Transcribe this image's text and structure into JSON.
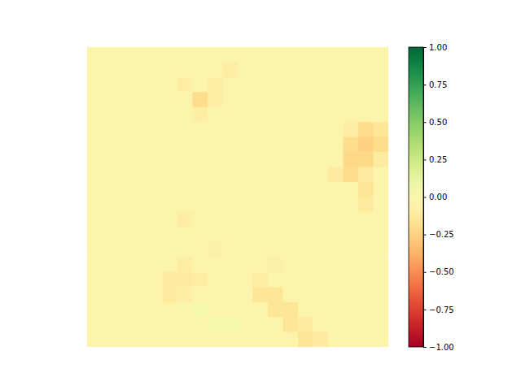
{
  "chart_data": {
    "type": "heatmap",
    "color": "RdYlGn",
    "tick_labels": false,
    "cells": [
      [
        -0.05,
        -0.05,
        -0.05,
        -0.05,
        -0.05,
        -0.05,
        -0.05,
        -0.05,
        -0.05,
        -0.05,
        -0.05,
        -0.05,
        -0.05,
        -0.05,
        -0.05,
        -0.05,
        -0.05,
        -0.05,
        -0.05,
        -0.05
      ],
      [
        -0.05,
        -0.05,
        -0.05,
        -0.05,
        -0.05,
        -0.05,
        -0.05,
        -0.05,
        -0.05,
        -0.1,
        -0.05,
        -0.05,
        -0.05,
        -0.05,
        -0.05,
        -0.05,
        -0.05,
        -0.05,
        -0.05,
        -0.05
      ],
      [
        -0.05,
        -0.05,
        -0.05,
        -0.05,
        -0.05,
        -0.05,
        -0.1,
        -0.05,
        -0.1,
        -0.05,
        -0.05,
        -0.05,
        -0.05,
        -0.05,
        -0.05,
        -0.05,
        -0.05,
        -0.05,
        -0.05,
        -0.05
      ],
      [
        -0.05,
        -0.05,
        -0.05,
        -0.05,
        -0.05,
        -0.05,
        -0.05,
        -0.2,
        -0.1,
        -0.05,
        -0.05,
        -0.05,
        -0.05,
        -0.05,
        -0.05,
        -0.05,
        -0.05,
        -0.05,
        -0.05,
        -0.05
      ],
      [
        -0.05,
        -0.05,
        -0.05,
        -0.05,
        -0.05,
        -0.05,
        -0.05,
        -0.1,
        -0.05,
        -0.05,
        -0.05,
        -0.05,
        -0.05,
        -0.05,
        -0.05,
        -0.05,
        -0.05,
        -0.05,
        -0.05,
        -0.05
      ],
      [
        -0.05,
        -0.05,
        -0.05,
        -0.05,
        -0.05,
        -0.05,
        -0.05,
        -0.05,
        -0.05,
        -0.05,
        -0.05,
        -0.05,
        -0.05,
        -0.05,
        -0.05,
        -0.05,
        -0.05,
        -0.1,
        -0.2,
        -0.15
      ],
      [
        -0.05,
        -0.05,
        -0.05,
        -0.05,
        -0.05,
        -0.05,
        -0.05,
        -0.05,
        -0.05,
        -0.05,
        -0.05,
        -0.05,
        -0.05,
        -0.05,
        -0.05,
        -0.05,
        -0.05,
        -0.2,
        -0.25,
        -0.2
      ],
      [
        -0.05,
        -0.05,
        -0.05,
        -0.05,
        -0.05,
        -0.05,
        -0.05,
        -0.05,
        -0.05,
        -0.05,
        -0.05,
        -0.05,
        -0.05,
        -0.05,
        -0.05,
        -0.05,
        -0.05,
        -0.22,
        -0.22,
        -0.12
      ],
      [
        -0.05,
        -0.05,
        -0.05,
        -0.05,
        -0.05,
        -0.05,
        -0.05,
        -0.05,
        -0.05,
        -0.05,
        -0.05,
        -0.05,
        -0.05,
        -0.05,
        -0.05,
        -0.05,
        -0.12,
        -0.2,
        -0.12,
        -0.05
      ],
      [
        -0.05,
        -0.05,
        -0.05,
        -0.05,
        -0.05,
        -0.05,
        -0.05,
        -0.05,
        -0.05,
        -0.05,
        -0.05,
        -0.05,
        -0.05,
        -0.05,
        -0.05,
        -0.05,
        -0.05,
        -0.05,
        -0.15,
        -0.05
      ],
      [
        -0.05,
        -0.05,
        -0.05,
        -0.05,
        -0.05,
        -0.05,
        -0.05,
        -0.05,
        -0.05,
        -0.05,
        -0.05,
        -0.05,
        -0.05,
        -0.05,
        -0.05,
        -0.05,
        -0.05,
        -0.05,
        -0.12,
        -0.05
      ],
      [
        -0.05,
        -0.05,
        -0.05,
        -0.05,
        -0.05,
        -0.05,
        -0.1,
        -0.05,
        -0.05,
        -0.05,
        -0.05,
        -0.05,
        -0.05,
        -0.05,
        -0.05,
        -0.05,
        -0.05,
        -0.05,
        -0.05,
        -0.05
      ],
      [
        -0.05,
        -0.05,
        -0.05,
        -0.05,
        -0.05,
        -0.05,
        -0.05,
        -0.05,
        -0.05,
        -0.05,
        -0.05,
        -0.05,
        -0.05,
        -0.05,
        -0.05,
        -0.05,
        -0.05,
        -0.05,
        -0.05,
        -0.05
      ],
      [
        -0.05,
        -0.05,
        -0.05,
        -0.05,
        -0.05,
        -0.05,
        -0.05,
        -0.05,
        -0.08,
        -0.05,
        -0.05,
        -0.05,
        -0.05,
        -0.05,
        -0.05,
        -0.05,
        -0.05,
        -0.05,
        -0.05,
        -0.05
      ],
      [
        -0.05,
        -0.05,
        -0.05,
        -0.05,
        -0.05,
        -0.05,
        -0.1,
        -0.05,
        -0.05,
        -0.05,
        -0.05,
        -0.05,
        -0.08,
        -0.05,
        -0.05,
        -0.05,
        -0.05,
        -0.05,
        -0.05,
        -0.05
      ],
      [
        -0.05,
        -0.05,
        -0.05,
        -0.05,
        -0.05,
        -0.12,
        -0.12,
        -0.1,
        -0.05,
        -0.05,
        -0.05,
        -0.1,
        -0.05,
        -0.05,
        -0.05,
        -0.05,
        -0.05,
        -0.05,
        -0.05,
        -0.05
      ],
      [
        -0.05,
        -0.05,
        -0.05,
        -0.05,
        -0.05,
        -0.12,
        -0.1,
        -0.05,
        -0.05,
        -0.05,
        -0.05,
        -0.15,
        -0.15,
        -0.05,
        -0.05,
        -0.05,
        -0.05,
        -0.05,
        -0.05,
        -0.05
      ],
      [
        -0.05,
        -0.05,
        -0.05,
        -0.05,
        -0.05,
        -0.05,
        -0.05,
        0.05,
        -0.05,
        -0.05,
        -0.05,
        -0.05,
        -0.15,
        -0.15,
        -0.05,
        -0.05,
        -0.05,
        -0.05,
        -0.05,
        -0.05
      ],
      [
        -0.05,
        -0.05,
        -0.05,
        -0.05,
        -0.05,
        -0.05,
        -0.05,
        -0.05,
        0.05,
        0.05,
        -0.05,
        -0.05,
        -0.05,
        -0.15,
        -0.12,
        -0.05,
        -0.05,
        -0.05,
        -0.05,
        -0.05
      ],
      [
        -0.05,
        -0.05,
        -0.05,
        -0.05,
        -0.05,
        -0.05,
        -0.05,
        -0.05,
        -0.05,
        -0.05,
        -0.05,
        -0.05,
        -0.05,
        -0.05,
        -0.15,
        -0.12,
        -0.05,
        -0.05,
        -0.05,
        -0.05
      ]
    ],
    "colorbar": {
      "range": [
        -1,
        1
      ],
      "ticks": [
        {
          "value": -1,
          "label": "−1.00"
        },
        {
          "value": -0.75,
          "label": "−0.75"
        },
        {
          "value": -0.5,
          "label": "−0.50"
        },
        {
          "value": -0.25,
          "label": "−0.25"
        },
        {
          "value": 0,
          "label": "0.00"
        },
        {
          "value": 0.25,
          "label": "0.25"
        },
        {
          "value": 0.5,
          "label": "0.50"
        },
        {
          "value": 0.75,
          "label": "0.75"
        },
        {
          "value": 1,
          "label": "1.00"
        }
      ]
    }
  }
}
